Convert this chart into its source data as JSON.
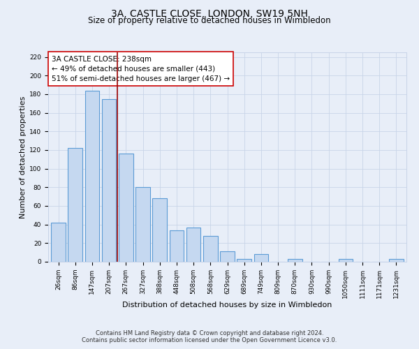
{
  "title": "3A, CASTLE CLOSE, LONDON, SW19 5NH",
  "subtitle": "Size of property relative to detached houses in Wimbledon",
  "xlabel": "Distribution of detached houses by size in Wimbledon",
  "ylabel": "Number of detached properties",
  "bar_labels": [
    "26sqm",
    "86sqm",
    "147sqm",
    "207sqm",
    "267sqm",
    "327sqm",
    "388sqm",
    "448sqm",
    "508sqm",
    "568sqm",
    "629sqm",
    "689sqm",
    "749sqm",
    "809sqm",
    "870sqm",
    "930sqm",
    "990sqm",
    "1050sqm",
    "1111sqm",
    "1171sqm",
    "1231sqm"
  ],
  "bar_values": [
    42,
    122,
    184,
    175,
    116,
    80,
    68,
    34,
    37,
    28,
    11,
    3,
    8,
    0,
    3,
    0,
    0,
    3,
    0,
    0,
    3
  ],
  "bar_color": "#c5d8f0",
  "bar_edgecolor": "#5b9bd5",
  "ylim": [
    0,
    225
  ],
  "yticks": [
    0,
    20,
    40,
    60,
    80,
    100,
    120,
    140,
    160,
    180,
    200,
    220
  ],
  "property_label": "3A CASTLE CLOSE: 238sqm",
  "annotation_line1": "← 49% of detached houses are smaller (443)",
  "annotation_line2": "51% of semi-detached houses are larger (467) →",
  "red_line_x": 3.5,
  "footer_line1": "Contains HM Land Registry data © Crown copyright and database right 2024.",
  "footer_line2": "Contains public sector information licensed under the Open Government Licence v3.0.",
  "background_color": "#e8eef8",
  "grid_color": "#c8d4e8",
  "title_fontsize": 10,
  "subtitle_fontsize": 8.5,
  "axis_label_fontsize": 8,
  "tick_fontsize": 6.5,
  "annotation_fontsize": 7.5,
  "footer_fontsize": 6
}
